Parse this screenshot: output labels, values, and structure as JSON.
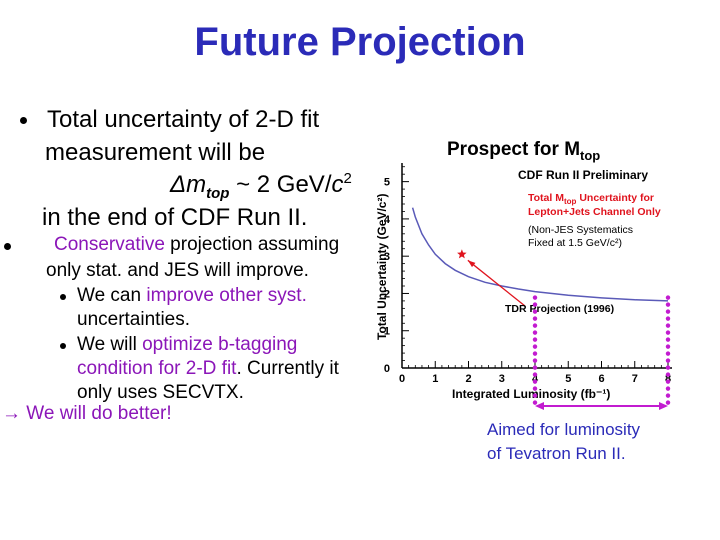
{
  "slide": {
    "title": "Future Projection",
    "bullet1": {
      "line1": "Total uncertainty of 2-D fit",
      "line2": "measurement will be",
      "line3_prefix": "Δm",
      "line3_sub": "top",
      "line3_mid": " ~ 2 GeV/",
      "line3_c": "c",
      "line3_sup": "2",
      "line4": "in the end of CDF Run II."
    },
    "bullet2": {
      "part1": "Conservative",
      "part2": " projection assuming",
      "line2": "only stat. and JES will improve."
    },
    "sub1": {
      "part1": "We can ",
      "part2": "improve other syst.",
      "line2": "uncertainties."
    },
    "sub2": {
      "part1": "We will ",
      "part2": "optimize b-tagging",
      "line2a": "condition for 2-D fit",
      "line2b": ".  Currently it",
      "line3": "only uses SECVTX."
    },
    "conclusion": "→ We will do better!",
    "caption_line1": "Aimed for luminosity",
    "caption_line2": "of Tevatron Run II."
  },
  "chart_data": {
    "type": "line",
    "title": "Prospect for M",
    "title_sub": "top",
    "subtitle": "CDF Run II Preliminary",
    "legend_line1_a": "Total M",
    "legend_line1_sub": "top",
    "legend_line1_b": " Uncertainty for",
    "legend_line2": "Lepton+Jets Channel Only",
    "legend_line3": "(Non-JES Systematics",
    "legend_line4": "Fixed at 1.5 GeV/c²)",
    "annotation": "TDR Projection (1996)",
    "xlabel": "Integrated Luminosity (fb⁻¹)",
    "ylabel": "Total Uncertainty (GeV/c²)",
    "xlim": [
      0,
      8
    ],
    "ylim": [
      0,
      5.5
    ],
    "xticks": [
      "0",
      "1",
      "2",
      "3",
      "4",
      "5",
      "6",
      "7",
      "8"
    ],
    "yticks": [
      "0",
      "1",
      "2",
      "3",
      "4",
      "5"
    ],
    "x": [
      0.32,
      0.4,
      0.6,
      0.8,
      1.0,
      1.3,
      1.6,
      2.0,
      2.5,
      3.0,
      3.5,
      4.0,
      5.0,
      6.0,
      7.0,
      8.0
    ],
    "y": [
      4.3,
      4.05,
      3.6,
      3.3,
      3.05,
      2.8,
      2.62,
      2.45,
      2.3,
      2.2,
      2.12,
      2.05,
      1.95,
      1.88,
      1.83,
      1.8
    ],
    "tdr_point": {
      "x": 1.8,
      "y": 3.05
    },
    "lumi_range": [
      4,
      8
    ],
    "colors": {
      "curve": "#5a5ab8",
      "marker": "#e0141e",
      "range": "#c21bd0",
      "legend_red": "#e0141e",
      "title": "#2b2bb8",
      "accent": "#8b16b8"
    }
  }
}
